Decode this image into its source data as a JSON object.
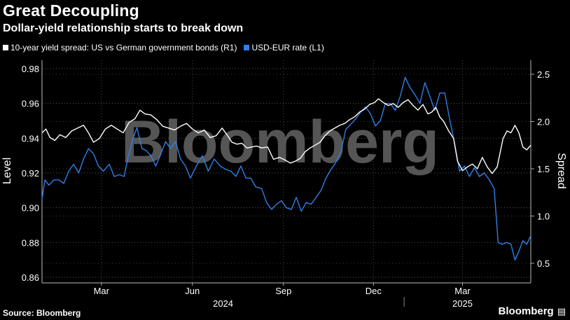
{
  "header": {
    "title": "Great Decoupling",
    "subtitle": "Dollar-yield relationship starts to break down"
  },
  "footer": {
    "source": "Source: Bloomberg",
    "brand": "Bloomberg"
  },
  "watermark": "Bloomberg",
  "colors": {
    "background": "#000000",
    "white_series": "#ffffff",
    "blue_series": "#2f7fe6",
    "grid": "#555555"
  },
  "chart_data": {
    "type": "line",
    "title": "Great Decoupling",
    "subtitle": "Dollar-yield relationship starts to break down",
    "y_left": {
      "label": "Level",
      "range": [
        0.86,
        0.985
      ],
      "ticks": [
        "0.98",
        "0.96",
        "0.94",
        "0.92",
        "0.90",
        "0.88",
        "0.86"
      ]
    },
    "y_right": {
      "label": "Spread",
      "range": [
        0.4,
        2.6
      ],
      "ticks": [
        "2.5",
        "2.0",
        "1.5",
        "1.0",
        "0.5"
      ]
    },
    "x": {
      "range_days": [
        0,
        488
      ],
      "ticks": [
        {
          "label": "Mar",
          "day": 60
        },
        {
          "label": "Jun",
          "day": 152
        },
        {
          "label": "Sep",
          "day": 244
        },
        {
          "label": "Dec",
          "day": 335
        },
        {
          "label": "Mar",
          "day": 425
        }
      ],
      "years": [
        {
          "label": "2024",
          "day": 183
        },
        {
          "label": "2025",
          "day": 425
        }
      ],
      "year_divider_day": 366
    },
    "series": [
      {
        "name": "10-year yield spread: US vs German government bonds (R1)",
        "axis": "right",
        "legend_label": "10-year yield spread: US vs German government bonds (R1)",
        "points": [
          [
            0,
            1.88
          ],
          [
            4,
            1.92
          ],
          [
            8,
            1.83
          ],
          [
            13,
            1.8
          ],
          [
            18,
            1.86
          ],
          [
            24,
            1.83
          ],
          [
            30,
            1.9
          ],
          [
            36,
            1.93
          ],
          [
            42,
            1.96
          ],
          [
            47,
            1.88
          ],
          [
            52,
            1.78
          ],
          [
            58,
            1.82
          ],
          [
            64,
            1.92
          ],
          [
            70,
            1.96
          ],
          [
            76,
            1.92
          ],
          [
            82,
            1.88
          ],
          [
            88,
            1.99
          ],
          [
            94,
            2.03
          ],
          [
            99,
            2.12
          ],
          [
            104,
            2.08
          ],
          [
            110,
            2.07
          ],
          [
            116,
            2.02
          ],
          [
            122,
            1.95
          ],
          [
            128,
            1.93
          ],
          [
            134,
            1.91
          ],
          [
            140,
            1.95
          ],
          [
            146,
            1.98
          ],
          [
            152,
            1.92
          ],
          [
            158,
            1.88
          ],
          [
            164,
            1.91
          ],
          [
            170,
            1.83
          ],
          [
            176,
            1.85
          ],
          [
            182,
            1.93
          ],
          [
            187,
            1.86
          ],
          [
            192,
            1.78
          ],
          [
            197,
            1.76
          ],
          [
            202,
            1.77
          ],
          [
            207,
            1.72
          ],
          [
            212,
            1.73
          ],
          [
            217,
            1.74
          ],
          [
            222,
            1.72
          ],
          [
            228,
            1.73
          ],
          [
            234,
            1.6
          ],
          [
            240,
            1.62
          ],
          [
            246,
            1.59
          ],
          [
            251,
            1.56
          ],
          [
            256,
            1.58
          ],
          [
            261,
            1.61
          ],
          [
            266,
            1.68
          ],
          [
            271,
            1.72
          ],
          [
            276,
            1.75
          ],
          [
            281,
            1.78
          ],
          [
            286,
            1.85
          ],
          [
            291,
            1.9
          ],
          [
            296,
            1.93
          ],
          [
            301,
            1.96
          ],
          [
            306,
            1.98
          ],
          [
            311,
            2.02
          ],
          [
            316,
            2.05
          ],
          [
            321,
            2.1
          ],
          [
            326,
            2.13
          ],
          [
            331,
            2.18
          ],
          [
            336,
            2.2
          ],
          [
            340,
            2.24
          ],
          [
            345,
            2.2
          ],
          [
            350,
            2.17
          ],
          [
            355,
            2.19
          ],
          [
            360,
            2.15
          ],
          [
            365,
            2.2
          ],
          [
            370,
            2.23
          ],
          [
            375,
            2.17
          ],
          [
            380,
            2.12
          ],
          [
            385,
            2.18
          ],
          [
            390,
            2.08
          ],
          [
            394,
            2.1
          ],
          [
            398,
            2.15
          ],
          [
            402,
            2.05
          ],
          [
            406,
            2.0
          ],
          [
            411,
            1.9
          ],
          [
            416,
            1.82
          ],
          [
            420,
            1.58
          ],
          [
            425,
            1.48
          ],
          [
            430,
            1.52
          ],
          [
            435,
            1.55
          ],
          [
            440,
            1.5
          ],
          [
            445,
            1.62
          ],
          [
            450,
            1.52
          ],
          [
            455,
            1.45
          ],
          [
            460,
            1.52
          ],
          [
            466,
            1.82
          ],
          [
            470,
            1.9
          ],
          [
            474,
            1.88
          ],
          [
            478,
            1.96
          ],
          [
            482,
            1.88
          ],
          [
            486,
            1.73
          ],
          [
            490,
            1.7
          ],
          [
            494,
            1.75
          ]
        ]
      },
      {
        "name": "USD-EUR rate (L1)",
        "axis": "left",
        "legend_label": "USD-EUR rate (L1)",
        "points": [
          [
            0,
            0.905
          ],
          [
            3,
            0.916
          ],
          [
            7,
            0.913
          ],
          [
            12,
            0.916
          ],
          [
            17,
            0.916
          ],
          [
            22,
            0.914
          ],
          [
            27,
            0.921
          ],
          [
            32,
            0.925
          ],
          [
            37,
            0.92
          ],
          [
            42,
            0.928
          ],
          [
            47,
            0.934
          ],
          [
            52,
            0.931
          ],
          [
            57,
            0.924
          ],
          [
            62,
            0.921
          ],
          [
            68,
            0.925
          ],
          [
            73,
            0.918
          ],
          [
            78,
            0.919
          ],
          [
            83,
            0.918
          ],
          [
            87,
            0.929
          ],
          [
            92,
            0.94
          ],
          [
            96,
            0.946
          ],
          [
            101,
            0.934
          ],
          [
            105,
            0.933
          ],
          [
            110,
            0.93
          ],
          [
            115,
            0.924
          ],
          [
            120,
            0.931
          ],
          [
            125,
            0.938
          ],
          [
            130,
            0.934
          ],
          [
            135,
            0.938
          ],
          [
            140,
            0.928
          ],
          [
            145,
            0.924
          ],
          [
            150,
            0.917
          ],
          [
            156,
            0.924
          ],
          [
            162,
            0.93
          ],
          [
            168,
            0.921
          ],
          [
            174,
            0.928
          ],
          [
            180,
            0.924
          ],
          [
            186,
            0.922
          ],
          [
            191,
            0.921
          ],
          [
            196,
            0.918
          ],
          [
            201,
            0.924
          ],
          [
            206,
            0.917
          ],
          [
            211,
            0.917
          ],
          [
            216,
            0.912
          ],
          [
            222,
            0.911
          ],
          [
            227,
            0.903
          ],
          [
            232,
            0.899
          ],
          [
            237,
            0.902
          ],
          [
            242,
            0.904
          ],
          [
            247,
            0.9
          ],
          [
            252,
            0.899
          ],
          [
            257,
            0.906
          ],
          [
            262,
            0.898
          ],
          [
            267,
            0.903
          ],
          [
            272,
            0.902
          ],
          [
            277,
            0.906
          ],
          [
            282,
            0.91
          ],
          [
            287,
            0.917
          ],
          [
            292,
            0.922
          ],
          [
            297,
            0.926
          ],
          [
            302,
            0.932
          ],
          [
            307,
            0.945
          ],
          [
            312,
            0.948
          ],
          [
            317,
            0.951
          ],
          [
            322,
            0.955
          ],
          [
            327,
            0.958
          ],
          [
            332,
            0.954
          ],
          [
            337,
            0.947
          ],
          [
            342,
            0.95
          ],
          [
            347,
            0.96
          ],
          [
            352,
            0.96
          ],
          [
            357,
            0.956
          ],
          [
            362,
            0.964
          ],
          [
            367,
            0.975
          ],
          [
            372,
            0.969
          ],
          [
            377,
            0.965
          ],
          [
            382,
            0.96
          ],
          [
            387,
            0.972
          ],
          [
            392,
            0.964
          ],
          [
            397,
            0.956
          ],
          [
            402,
            0.966
          ],
          [
            407,
            0.966
          ],
          [
            412,
            0.951
          ],
          [
            417,
            0.937
          ],
          [
            422,
            0.921
          ],
          [
            427,
            0.924
          ],
          [
            432,
            0.918
          ],
          [
            437,
            0.923
          ],
          [
            442,
            0.918
          ],
          [
            447,
            0.92
          ],
          [
            452,
            0.916
          ],
          [
            457,
            0.911
          ],
          [
            461,
            0.88
          ],
          [
            465,
            0.879
          ],
          [
            470,
            0.88
          ],
          [
            474,
            0.879
          ],
          [
            478,
            0.87
          ],
          [
            482,
            0.875
          ],
          [
            486,
            0.881
          ],
          [
            490,
            0.879
          ],
          [
            494,
            0.884
          ]
        ]
      }
    ]
  }
}
